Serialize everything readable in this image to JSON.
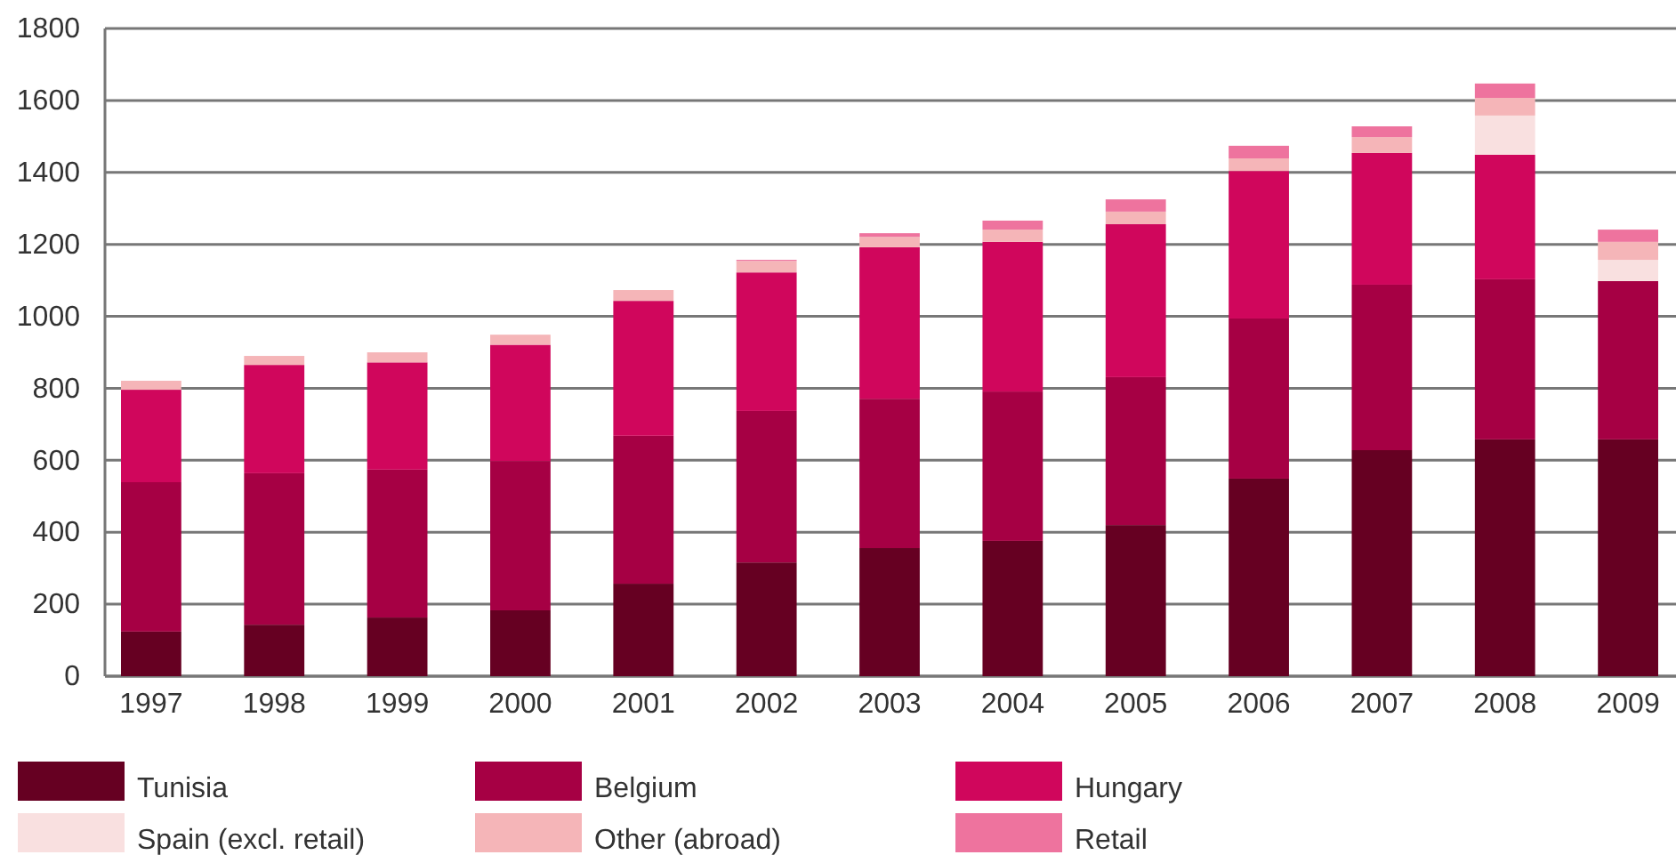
{
  "chart_data": {
    "type": "bar",
    "stacked": true,
    "categories": [
      "1997",
      "1998",
      "1999",
      "2000",
      "2001",
      "2002",
      "2003",
      "2004",
      "2005",
      "2006",
      "2007",
      "2008",
      "2009"
    ],
    "series": [
      {
        "name": "Tunisia",
        "color": "#660022",
        "values": [
          124,
          143,
          163,
          183,
          257,
          316,
          356,
          376,
          420,
          549,
          628,
          658,
          658
        ]
      },
      {
        "name": "Belgium",
        "color": "#a60044",
        "values": [
          415,
          421,
          411,
          415,
          411,
          421,
          415,
          415,
          411,
          445,
          460,
          445,
          440
        ]
      },
      {
        "name": "Hungary",
        "color": "#d0065c",
        "values": [
          257,
          301,
          298,
          323,
          375,
          385,
          421,
          416,
          425,
          410,
          366,
          346,
          0
        ]
      },
      {
        "name": "Spain (excl. retail)",
        "color": "#f9e0e0",
        "values": [
          0,
          0,
          0,
          0,
          0,
          0,
          0,
          0,
          0,
          null,
          0,
          109,
          59
        ]
      },
      {
        "name": "Other (abroad)",
        "color": "#f5b5b8",
        "values": [
          25,
          25,
          28,
          28,
          30,
          32,
          29,
          34,
          35,
          35,
          44,
          49,
          50
        ]
      },
      {
        "name": "Retail",
        "color": "#ee739e",
        "values": [
          0,
          0,
          0,
          0,
          0,
          3,
          10,
          25,
          34,
          35,
          30,
          40,
          34
        ]
      }
    ],
    "ylim": [
      0,
      1800
    ],
    "yticks": [
      0,
      200,
      400,
      600,
      800,
      1000,
      1200,
      1400,
      1600,
      1800
    ],
    "grid": "y",
    "legend": "bottom"
  }
}
